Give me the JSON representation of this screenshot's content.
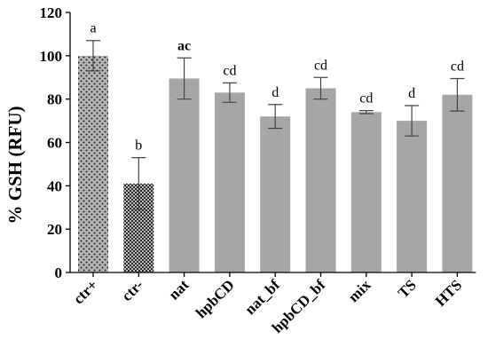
{
  "chart_data": {
    "type": "bar",
    "title": "",
    "xlabel": "",
    "ylabel": "% GSH (RFU)",
    "ylim": [
      0,
      120
    ],
    "yticks": [
      0,
      20,
      40,
      60,
      80,
      100,
      120
    ],
    "grid": false,
    "categories": [
      "ctr+",
      "ctr-",
      "nat",
      "hpbCD",
      "nat_bf",
      "hpbCD_bf",
      "mix",
      "TS",
      "HTS"
    ],
    "values": [
      100,
      41,
      89.5,
      83,
      72,
      85,
      74,
      70,
      82
    ],
    "errors": [
      7,
      12,
      9.5,
      4.5,
      5.5,
      5,
      0.7,
      7,
      7.5
    ],
    "significance": [
      "a",
      "b",
      "ac",
      "cd",
      "d",
      "cd",
      "cd",
      "d",
      "cd"
    ],
    "significance_bold": [
      false,
      false,
      true,
      false,
      false,
      false,
      false,
      false,
      false
    ],
    "fills": [
      "dots",
      "checker",
      "solid",
      "solid",
      "solid",
      "solid",
      "solid",
      "solid",
      "solid"
    ],
    "colors": {
      "bar": "#a6a6a6",
      "dots_bg": "#b5b5b5",
      "dots_fg": "#222222",
      "checker_light": "#bdbdbd",
      "checker_dark": "#262626",
      "axis": "#000000",
      "error": "#444444"
    }
  }
}
